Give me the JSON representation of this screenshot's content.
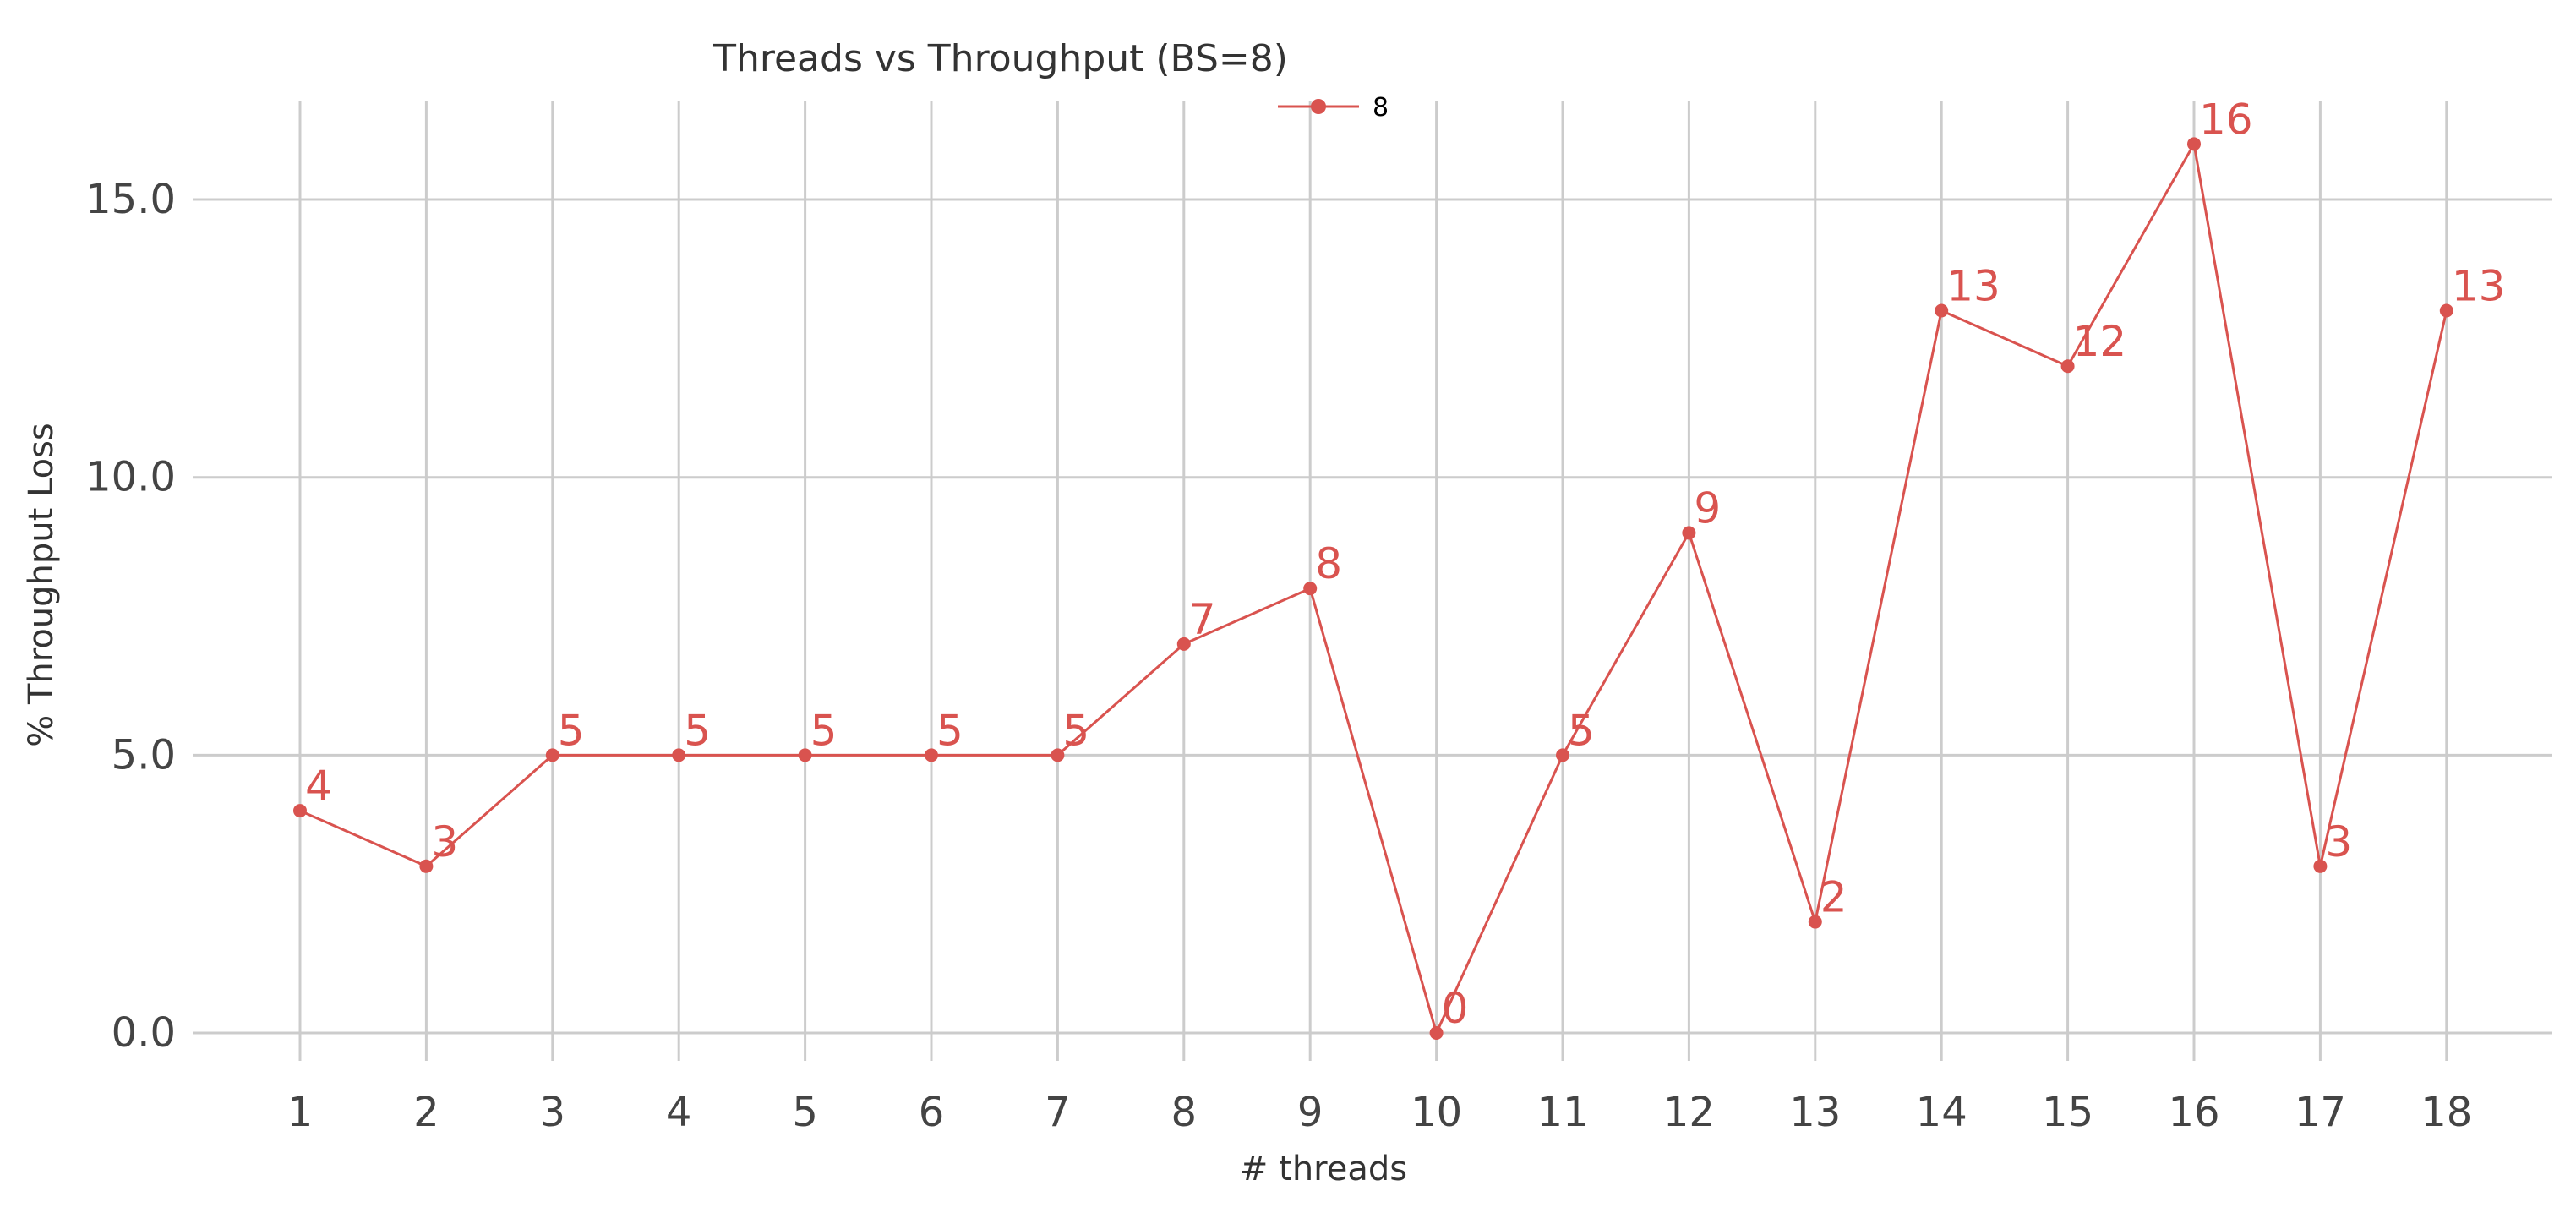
{
  "chart_data": {
    "type": "line",
    "title": "Threads vs Throughput (BS=8)",
    "xlabel": "# threads",
    "ylabel": "% Throughput Loss",
    "x": [
      1,
      2,
      3,
      4,
      5,
      6,
      7,
      8,
      9,
      10,
      11,
      12,
      13,
      14,
      15,
      16,
      17,
      18
    ],
    "x_tick_labels": [
      "1",
      "2",
      "3",
      "4",
      "5",
      "6",
      "7",
      "8",
      "9",
      "10",
      "11",
      "12",
      "13",
      "14",
      "15",
      "16",
      "17",
      "18"
    ],
    "y_ticks": [
      0,
      5,
      10,
      15
    ],
    "y_tick_labels": [
      "0.0",
      "5.0",
      "10.0",
      "15.0"
    ],
    "ylim": [
      -0.5,
      16.7
    ],
    "grid": true,
    "legend_position": "top-center",
    "series": [
      {
        "name": "8",
        "color": "#d9534f",
        "values": [
          4,
          3,
          5,
          5,
          5,
          5,
          5,
          7,
          8,
          0,
          5,
          9,
          2,
          13,
          12,
          16,
          3,
          13
        ],
        "point_labels": [
          "4",
          "3",
          "5",
          "5",
          "5",
          "5",
          "5",
          "7",
          "8",
          "0",
          "5",
          "9",
          "2",
          "13",
          "12",
          "16",
          "3",
          "13"
        ]
      }
    ]
  }
}
